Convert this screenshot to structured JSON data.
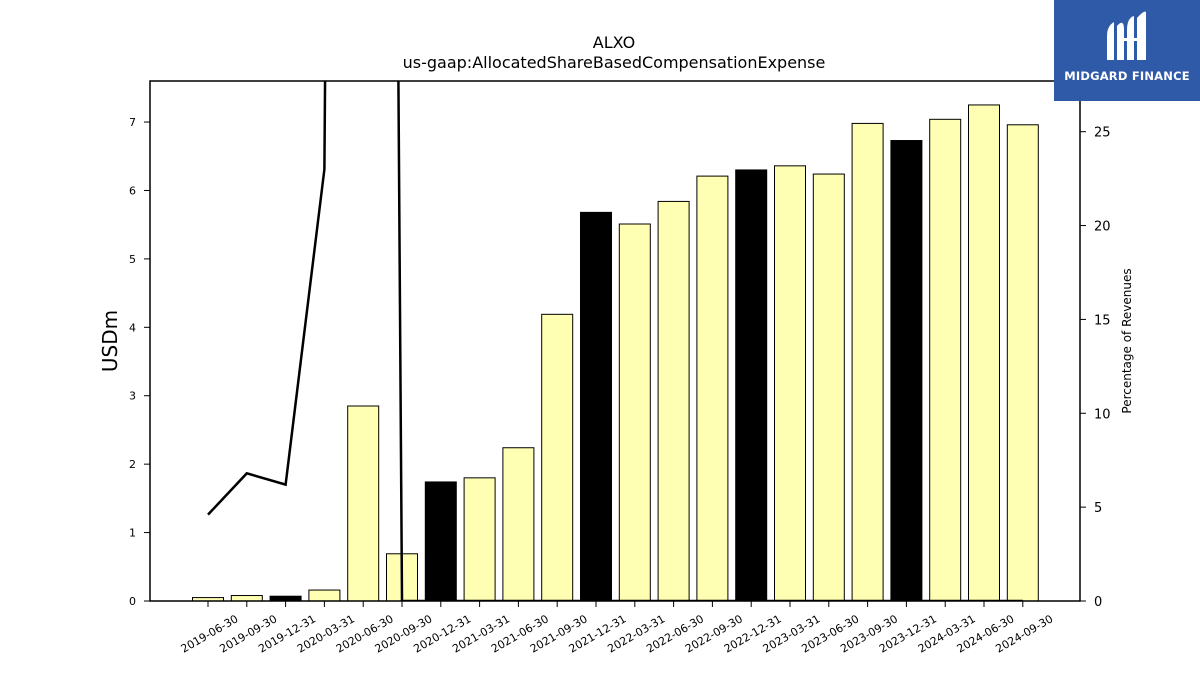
{
  "logo": {
    "text": "MIDGARD FINANCE"
  },
  "chart_data": {
    "type": "bar",
    "title": "ALXO",
    "subtitle": "us-gaap:AllocatedShareBasedCompensationExpense",
    "ylabel": "USDm",
    "y2label": "Percentage of Revenues",
    "ylim": [
      0,
      7.6
    ],
    "y2lim": [
      0,
      27.7
    ],
    "yticks": [
      0,
      1,
      2,
      3,
      4,
      5,
      6,
      7
    ],
    "y2ticks": [
      0,
      5,
      10,
      15,
      20,
      25
    ],
    "categories": [
      "2019-06-30",
      "2019-09-30",
      "2019-12-31",
      "2020-03-31",
      "2020-06-30",
      "2020-09-30",
      "2020-12-31",
      "2021-03-31",
      "2021-06-30",
      "2021-09-30",
      "2021-12-31",
      "2022-03-31",
      "2022-06-30",
      "2022-09-30",
      "2022-12-31",
      "2023-03-31",
      "2023-06-30",
      "2023-09-30",
      "2023-12-31",
      "2024-03-31",
      "2024-06-30",
      "2024-09-30"
    ],
    "values": [
      0.05,
      0.08,
      0.07,
      0.16,
      2.85,
      0.69,
      1.74,
      1.8,
      2.24,
      4.19,
      5.68,
      5.51,
      5.84,
      6.21,
      6.3,
      6.36,
      6.24,
      6.98,
      6.73,
      7.04,
      7.25,
      6.96
    ],
    "bar_colors": [
      "#ffffb3",
      "#ffffb3",
      "#000000",
      "#ffffb3",
      "#ffffb3",
      "#ffffb3",
      "#000000",
      "#ffffb3",
      "#ffffb3",
      "#ffffb3",
      "#000000",
      "#ffffb3",
      "#ffffb3",
      "#ffffb3",
      "#000000",
      "#ffffb3",
      "#ffffb3",
      "#ffffb3",
      "#000000",
      "#ffffb3",
      "#ffffb3",
      "#ffffb3"
    ],
    "line_series": {
      "axis": "right",
      "values": [
        4.6,
        6.8,
        6.2,
        23.0,
        300,
        0,
        0,
        0,
        0,
        0,
        0,
        0,
        0,
        0,
        0,
        0,
        0,
        0,
        0,
        0,
        0,
        0
      ],
      "color": "#000000"
    },
    "grid": false
  }
}
